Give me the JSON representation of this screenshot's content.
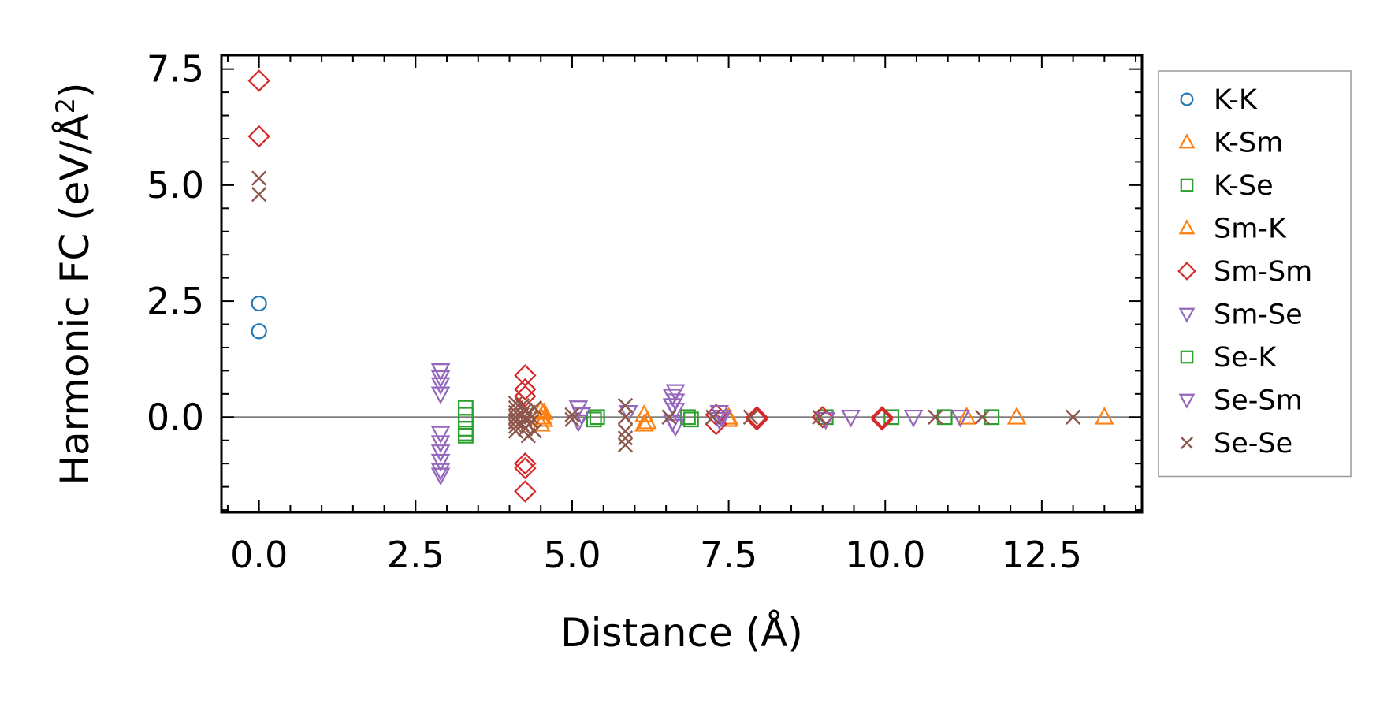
{
  "chart_data": {
    "type": "scatter",
    "title": "",
    "xlabel": "Distance (Å)",
    "ylabel": "Harmonic FC (eV/Å",
    "ylabel_superscript": "2",
    "ylabel_suffix": ")",
    "xlim": [
      -0.6,
      14.1
    ],
    "ylim": [
      -2.05,
      7.8
    ],
    "xticks": [
      0.0,
      2.5,
      5.0,
      7.5,
      10.0,
      12.5
    ],
    "xtick_labels": [
      "0.0",
      "2.5",
      "5.0",
      "7.5",
      "10.0",
      "12.5"
    ],
    "yticks": [
      0.0,
      2.5,
      5.0,
      7.5
    ],
    "ytick_labels": [
      "0.0",
      "2.5",
      "5.0",
      "7.5"
    ],
    "hline": 0,
    "legend_position": "outside-right",
    "series": [
      {
        "name": "K-K",
        "marker": "circle",
        "color": "#1f77b4",
        "points": [
          [
            0,
            2.45
          ],
          [
            0,
            1.85
          ]
        ]
      },
      {
        "name": "K-Sm",
        "marker": "triangle-up",
        "color": "#ff7f0e",
        "points": [
          [
            4.5,
            0.15
          ],
          [
            4.5,
            0.0
          ],
          [
            4.5,
            -0.15
          ],
          [
            6.15,
            0.05
          ],
          [
            6.15,
            -0.15
          ],
          [
            7.5,
            0.0
          ],
          [
            11.3,
            0.0
          ],
          [
            12.1,
            0.0
          ],
          [
            13.5,
            0.0
          ]
        ]
      },
      {
        "name": "K-Se",
        "marker": "square",
        "color": "#2ca02c",
        "points": [
          [
            3.3,
            0.2
          ],
          [
            3.3,
            0.05
          ],
          [
            3.3,
            -0.1
          ],
          [
            3.3,
            -0.25
          ],
          [
            3.3,
            -0.4
          ],
          [
            5.4,
            0.0
          ],
          [
            6.85,
            0.0
          ],
          [
            9.05,
            0.0
          ],
          [
            10.1,
            0.0
          ],
          [
            10.95,
            0.0
          ],
          [
            11.7,
            0.0
          ]
        ]
      },
      {
        "name": "Sm-K",
        "marker": "triangle-up",
        "color": "#ff7f0e",
        "points": [
          [
            4.55,
            0.1
          ],
          [
            4.55,
            -0.05
          ],
          [
            6.2,
            -0.1
          ],
          [
            7.5,
            -0.05
          ]
        ]
      },
      {
        "name": "Sm-Sm",
        "marker": "diamond",
        "color": "#d62728",
        "points": [
          [
            0,
            7.25
          ],
          [
            0,
            6.05
          ],
          [
            4.25,
            0.9
          ],
          [
            4.25,
            0.6
          ],
          [
            4.25,
            0.45
          ],
          [
            4.25,
            -1.0
          ],
          [
            4.25,
            -1.1
          ],
          [
            4.25,
            -1.6
          ],
          [
            7.3,
            -0.15
          ],
          [
            7.3,
            0.05
          ],
          [
            7.95,
            0.0
          ],
          [
            7.95,
            -0.05
          ],
          [
            9.0,
            0.0
          ],
          [
            9.95,
            0.0
          ],
          [
            9.95,
            -0.05
          ]
        ]
      },
      {
        "name": "Sm-Se",
        "marker": "triangle-down",
        "color": "#9467bd",
        "points": [
          [
            2.9,
            1.0
          ],
          [
            2.9,
            0.85
          ],
          [
            2.9,
            0.7
          ],
          [
            2.9,
            0.5
          ],
          [
            2.9,
            -0.35
          ],
          [
            2.9,
            -0.55
          ],
          [
            2.9,
            -0.75
          ],
          [
            2.9,
            -0.95
          ],
          [
            2.9,
            -1.15
          ],
          [
            2.9,
            -1.25
          ],
          [
            5.1,
            0.2
          ],
          [
            5.1,
            -0.1
          ],
          [
            6.65,
            0.55
          ],
          [
            6.65,
            0.35
          ],
          [
            6.65,
            0.15
          ],
          [
            6.65,
            -0.2
          ],
          [
            7.35,
            0.1
          ],
          [
            7.35,
            -0.05
          ],
          [
            9.45,
            0.0
          ],
          [
            10.45,
            0.0
          ],
          [
            11.2,
            0.0
          ]
        ]
      },
      {
        "name": "Se-K",
        "marker": "square",
        "color": "#2ca02c",
        "points": [
          [
            3.3,
            -0.35
          ],
          [
            5.35,
            -0.05
          ],
          [
            6.9,
            -0.05
          ]
        ]
      },
      {
        "name": "Se-Sm",
        "marker": "triangle-down",
        "color": "#9467bd",
        "points": [
          [
            5.15,
            0.05
          ],
          [
            5.9,
            0.1
          ],
          [
            6.6,
            0.45
          ],
          [
            6.6,
            0.25
          ],
          [
            6.6,
            -0.1
          ],
          [
            7.4,
            0.0
          ],
          [
            9.05,
            -0.05
          ]
        ]
      },
      {
        "name": "Se-Se",
        "marker": "x",
        "color": "#8c564b",
        "points": [
          [
            0,
            5.15
          ],
          [
            0,
            4.8
          ],
          [
            4.1,
            0.3
          ],
          [
            4.1,
            0.2
          ],
          [
            4.1,
            0.1
          ],
          [
            4.1,
            0.0
          ],
          [
            4.1,
            -0.1
          ],
          [
            4.1,
            -0.2
          ],
          [
            4.1,
            -0.3
          ],
          [
            4.2,
            0.25
          ],
          [
            4.2,
            0.05
          ],
          [
            4.2,
            -0.15
          ],
          [
            4.25,
            0.15
          ],
          [
            4.25,
            -0.05
          ],
          [
            4.25,
            -0.25
          ],
          [
            4.3,
            -0.4
          ],
          [
            4.3,
            0.1
          ],
          [
            4.35,
            0.0
          ],
          [
            4.35,
            -0.1
          ],
          [
            4.4,
            0.2
          ],
          [
            4.4,
            -0.3
          ],
          [
            5.0,
            0.05
          ],
          [
            5.0,
            -0.05
          ],
          [
            5.85,
            0.25
          ],
          [
            5.85,
            0.0
          ],
          [
            5.85,
            -0.3
          ],
          [
            5.85,
            -0.45
          ],
          [
            5.85,
            -0.6
          ],
          [
            6.55,
            0.0
          ],
          [
            7.25,
            0.0
          ],
          [
            7.85,
            0.0
          ],
          [
            8.95,
            0.0
          ],
          [
            10.8,
            0.0
          ],
          [
            11.55,
            0.0
          ],
          [
            13.0,
            0.0
          ]
        ]
      }
    ]
  }
}
